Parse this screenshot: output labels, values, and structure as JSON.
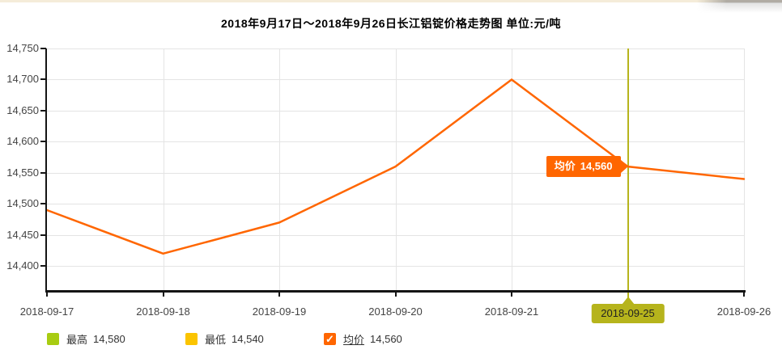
{
  "header": {
    "title": "2018年9月17日～2018年9月26日长江铝锭价格走势图 单位:元/吨"
  },
  "chart_data": {
    "type": "line",
    "title": "2018年9月17日～2018年9月26日长江铝锭价格走势图",
    "unit_label": "单位:元/吨",
    "categories": [
      "2018-09-17",
      "2018-09-18",
      "2018-09-19",
      "2018-09-20",
      "2018-09-21",
      "2018-09-25",
      "2018-09-26"
    ],
    "series": [
      {
        "name": "均价",
        "color": "#ff6600",
        "values": [
          14490,
          14420,
          14470,
          14560,
          14700,
          14560,
          14540
        ]
      }
    ],
    "ylim": [
      14360,
      14750
    ],
    "yticks": [
      14400,
      14450,
      14500,
      14550,
      14600,
      14650,
      14700,
      14750
    ],
    "grid": true,
    "legend_position": "bottom",
    "selected": {
      "category": "2018-09-25",
      "index": 5,
      "value": 14560
    }
  },
  "tooltip": {
    "label": "均价",
    "value": "14,560"
  },
  "legend": {
    "items": [
      {
        "label": "最高",
        "value": "14,580",
        "color": "#a8cc12",
        "checked": false
      },
      {
        "label": "最低",
        "value": "14,540",
        "color": "#fbc400",
        "checked": false
      },
      {
        "label": "均价",
        "value": "14,560",
        "color": "#ff6600",
        "checked": true,
        "underline": true
      }
    ]
  },
  "colors": {
    "line": "#ff6600",
    "selection": "#b6b41c",
    "grid": "#e4e4e4",
    "axis": "#141414",
    "label_text": "#444444"
  }
}
